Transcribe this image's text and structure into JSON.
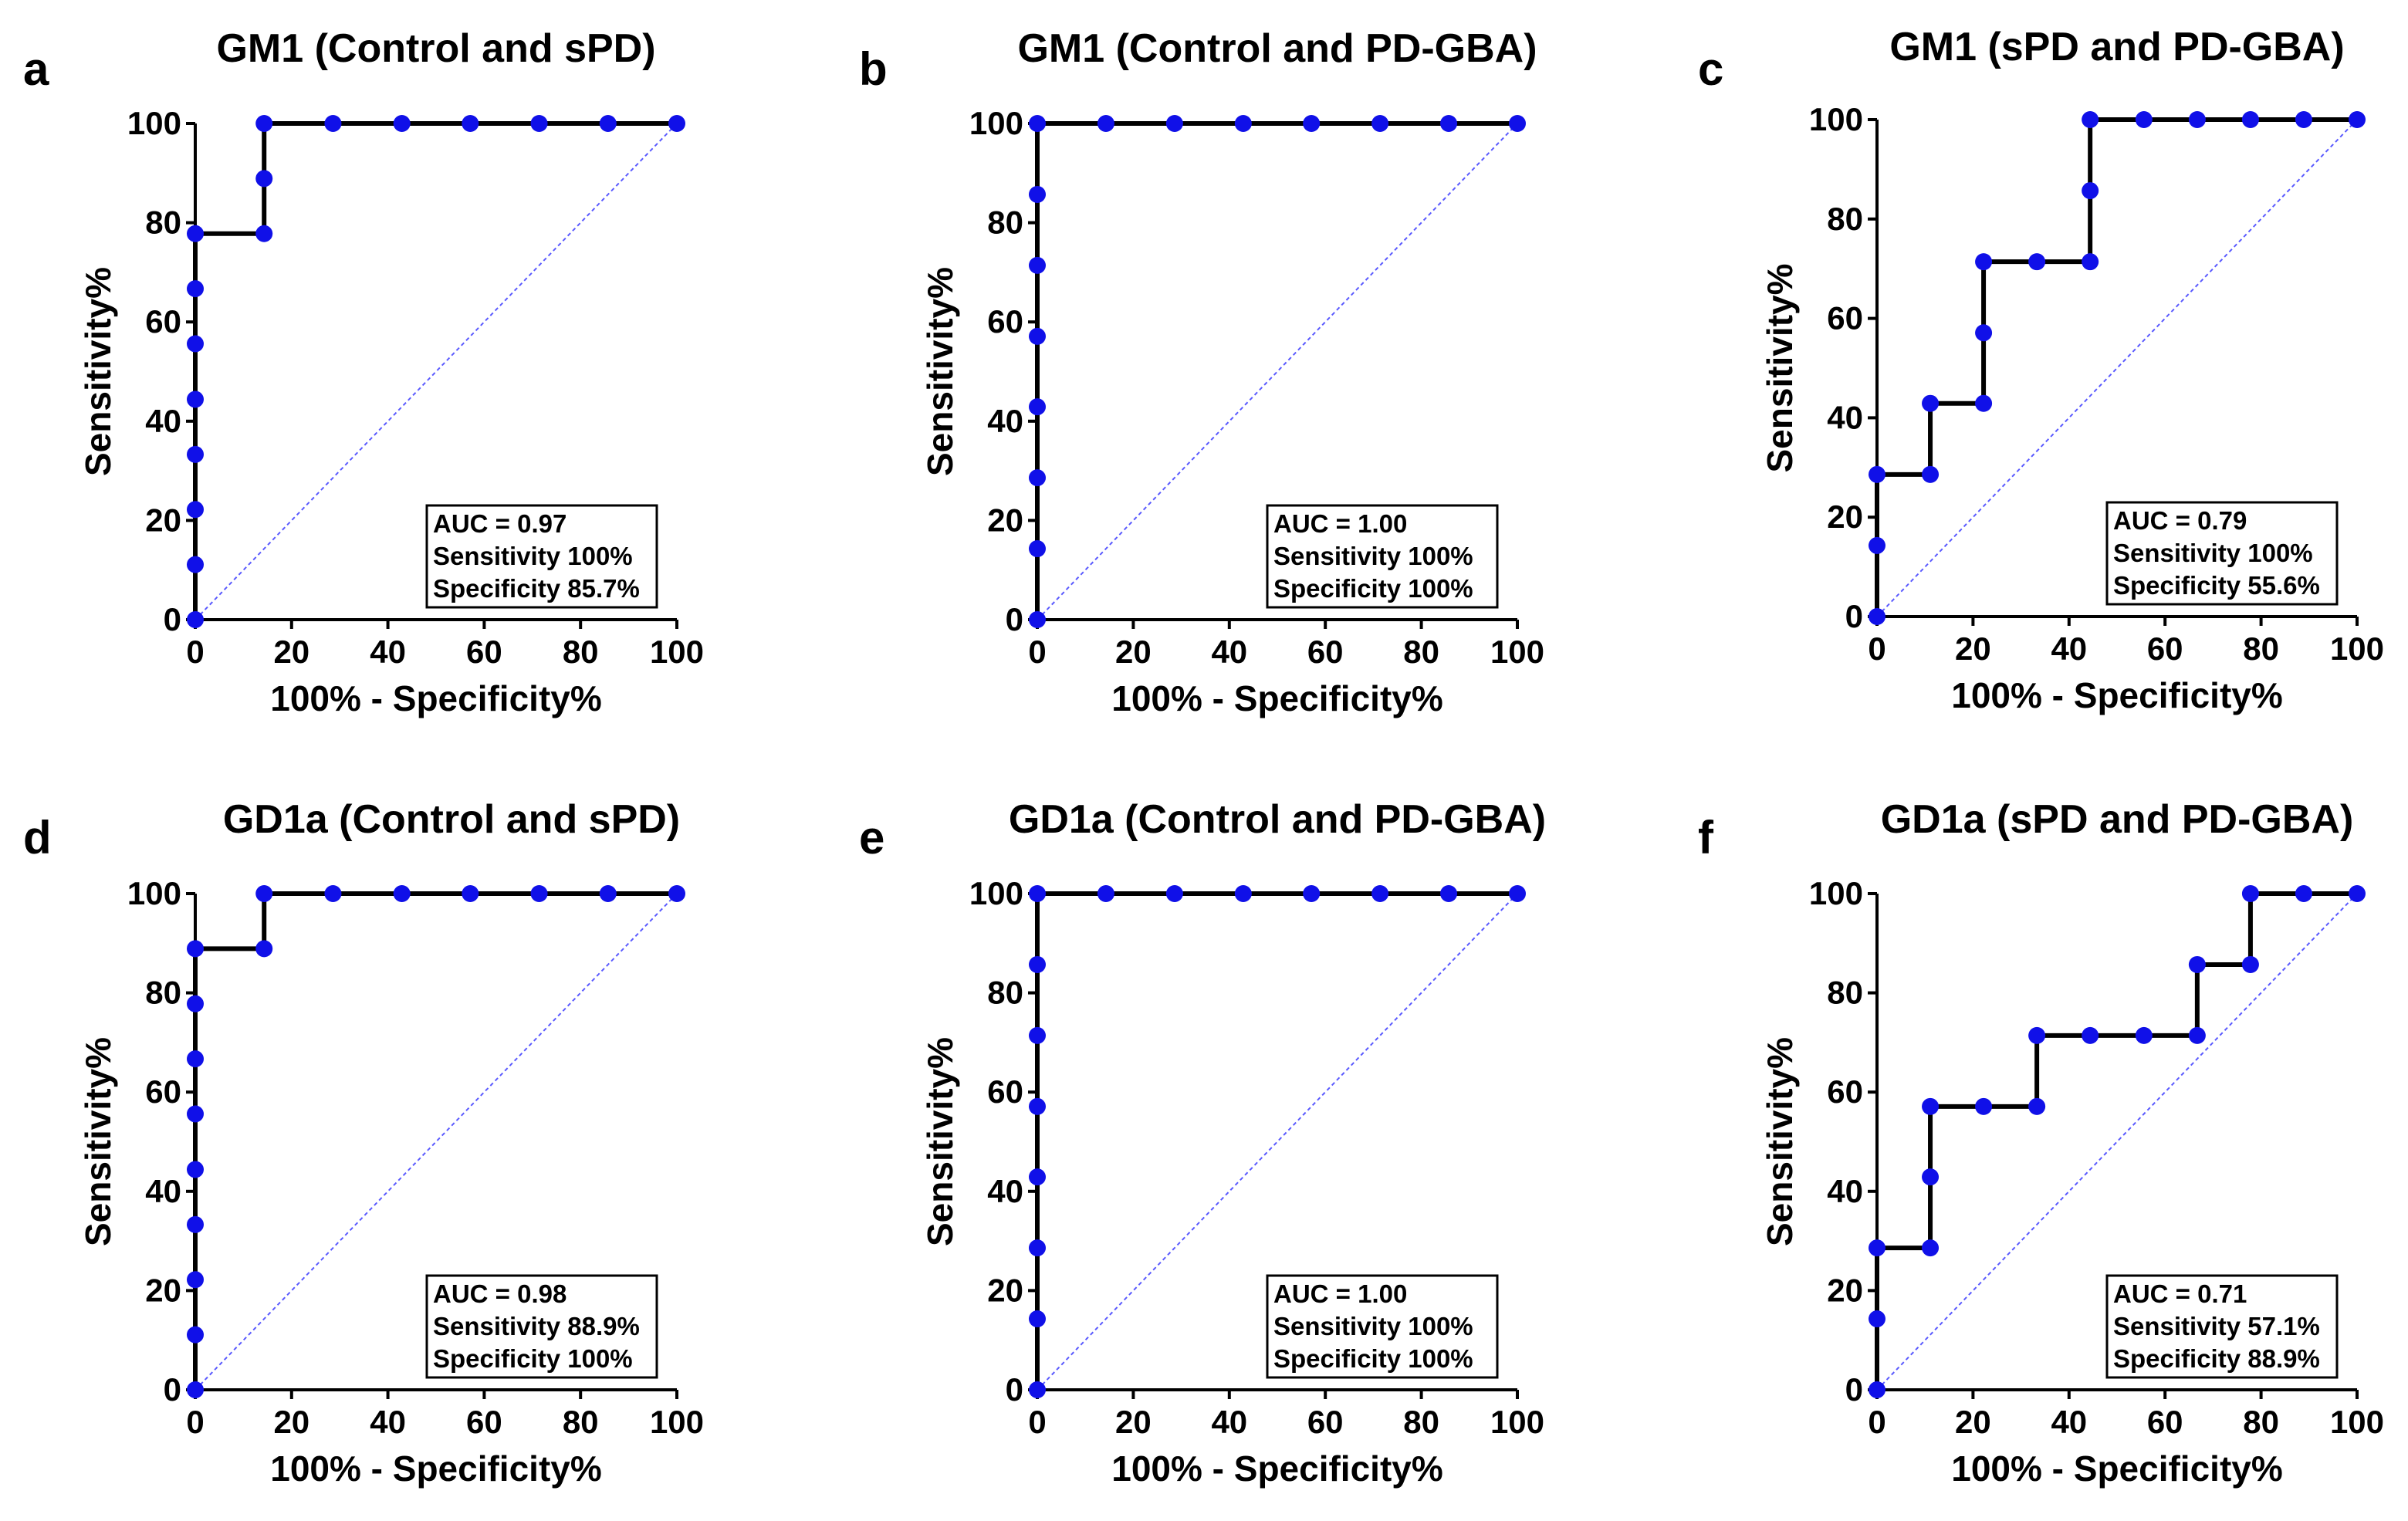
{
  "chart_data": [
    {
      "type": "line",
      "panel": "a",
      "title": "GM1 (Control and sPD)",
      "xlabel": "100% - Specificity%",
      "ylabel": "Sensitivity%",
      "xlim": [
        0,
        100
      ],
      "ylim": [
        0,
        100
      ],
      "xticks": [
        "0",
        "20",
        "40",
        "60",
        "80",
        "100"
      ],
      "yticks": [
        "0",
        "20",
        "40",
        "60",
        "80",
        "100"
      ],
      "legend": [
        "AUC = 0.97",
        "Sensitivity 100%",
        "Specificity 85.7%"
      ],
      "series": [
        {
          "name": "ROC curve",
          "x": [
            0,
            0,
            0,
            0,
            0,
            0,
            0,
            0,
            14.3,
            14.3,
            14.3,
            28.6,
            42.9,
            57.1,
            71.4,
            85.7,
            100
          ],
          "y": [
            0,
            11.1,
            22.2,
            33.3,
            44.4,
            55.6,
            66.7,
            77.8,
            77.8,
            88.9,
            100,
            100,
            100,
            100,
            100,
            100,
            100
          ]
        },
        {
          "name": "Reference line",
          "x": [
            0,
            100
          ],
          "y": [
            0,
            100
          ]
        }
      ]
    },
    {
      "type": "line",
      "panel": "b",
      "title": "GM1 (Control and PD-GBA)",
      "xlabel": "100% - Specificity%",
      "ylabel": "Sensitivity%",
      "xlim": [
        0,
        100
      ],
      "ylim": [
        0,
        100
      ],
      "xticks": [
        "0",
        "20",
        "40",
        "60",
        "80",
        "100"
      ],
      "yticks": [
        "0",
        "20",
        "40",
        "60",
        "80",
        "100"
      ],
      "legend": [
        "AUC = 1.00",
        "Sensitivity 100%",
        "Specificity 100%"
      ],
      "series": [
        {
          "name": "ROC curve",
          "x": [
            0,
            0,
            0,
            0,
            0,
            0,
            0,
            0,
            14.3,
            28.6,
            42.9,
            57.1,
            71.4,
            85.7,
            100
          ],
          "y": [
            0,
            14.3,
            28.6,
            42.9,
            57.1,
            71.4,
            85.7,
            100,
            100,
            100,
            100,
            100,
            100,
            100,
            100
          ]
        },
        {
          "name": "Reference line",
          "x": [
            0,
            100
          ],
          "y": [
            0,
            100
          ]
        }
      ]
    },
    {
      "type": "line",
      "panel": "c",
      "title": "GM1 (sPD and PD-GBA)",
      "xlabel": "100% - Specificity%",
      "ylabel": "Sensitivity%",
      "xlim": [
        0,
        100
      ],
      "ylim": [
        0,
        100
      ],
      "xticks": [
        "0",
        "20",
        "40",
        "60",
        "80",
        "100"
      ],
      "yticks": [
        "0",
        "20",
        "40",
        "60",
        "80",
        "100"
      ],
      "legend": [
        "AUC = 0.79",
        "Sensitivity 100%",
        "Specificity 55.6%"
      ],
      "series": [
        {
          "name": "ROC curve",
          "x": [
            0,
            0,
            0,
            11.1,
            11.1,
            22.2,
            22.2,
            22.2,
            33.3,
            44.4,
            44.4,
            44.4,
            55.6,
            66.7,
            77.8,
            88.9,
            100
          ],
          "y": [
            0,
            14.3,
            28.6,
            28.6,
            42.9,
            42.9,
            57.1,
            71.4,
            71.4,
            71.4,
            85.7,
            100,
            100,
            100,
            100,
            100,
            100
          ]
        },
        {
          "name": "Reference line",
          "x": [
            0,
            100
          ],
          "y": [
            0,
            100
          ]
        }
      ]
    },
    {
      "type": "line",
      "panel": "d",
      "title": "GD1a (Control and sPD)",
      "xlabel": "100% - Specificity%",
      "ylabel": "Sensitivity%",
      "xlim": [
        0,
        100
      ],
      "ylim": [
        0,
        100
      ],
      "xticks": [
        "0",
        "20",
        "40",
        "60",
        "80",
        "100"
      ],
      "yticks": [
        "0",
        "20",
        "40",
        "60",
        "80",
        "100"
      ],
      "legend": [
        "AUC = 0.98",
        "Sensitivity 88.9%",
        "Specificity 100%"
      ],
      "series": [
        {
          "name": "ROC curve",
          "x": [
            0,
            0,
            0,
            0,
            0,
            0,
            0,
            0,
            0,
            14.3,
            14.3,
            28.6,
            42.9,
            57.1,
            71.4,
            85.7,
            100
          ],
          "y": [
            0,
            11.1,
            22.2,
            33.3,
            44.4,
            55.6,
            66.7,
            77.8,
            88.9,
            88.9,
            100,
            100,
            100,
            100,
            100,
            100,
            100
          ]
        },
        {
          "name": "Reference line",
          "x": [
            0,
            100
          ],
          "y": [
            0,
            100
          ]
        }
      ]
    },
    {
      "type": "line",
      "panel": "e",
      "title": "GD1a (Control and PD-GBA)",
      "xlabel": "100% - Specificity%",
      "ylabel": "Sensitivity%",
      "xlim": [
        0,
        100
      ],
      "ylim": [
        0,
        100
      ],
      "xticks": [
        "0",
        "20",
        "40",
        "60",
        "80",
        "100"
      ],
      "yticks": [
        "0",
        "20",
        "40",
        "60",
        "80",
        "100"
      ],
      "legend": [
        "AUC = 1.00",
        "Sensitivity 100%",
        "Specificity 100%"
      ],
      "series": [
        {
          "name": "ROC curve",
          "x": [
            0,
            0,
            0,
            0,
            0,
            0,
            0,
            0,
            14.3,
            28.6,
            42.9,
            57.1,
            71.4,
            85.7,
            100
          ],
          "y": [
            0,
            14.3,
            28.6,
            42.9,
            57.1,
            71.4,
            85.7,
            100,
            100,
            100,
            100,
            100,
            100,
            100,
            100
          ]
        },
        {
          "name": "Reference line",
          "x": [
            0,
            100
          ],
          "y": [
            0,
            100
          ]
        }
      ]
    },
    {
      "type": "line",
      "panel": "f",
      "title": "GD1a (sPD and PD-GBA)",
      "xlabel": "100% - Specificity%",
      "ylabel": "Sensitivity%",
      "xlim": [
        0,
        100
      ],
      "ylim": [
        0,
        100
      ],
      "xticks": [
        "0",
        "20",
        "40",
        "60",
        "80",
        "100"
      ],
      "yticks": [
        "0",
        "20",
        "40",
        "60",
        "80",
        "100"
      ],
      "legend": [
        "AUC = 0.71",
        "Sensitivity 57.1%",
        "Specificity 88.9%"
      ],
      "series": [
        {
          "name": "ROC curve",
          "x": [
            0,
            0,
            0,
            11.1,
            11.1,
            11.1,
            22.2,
            33.3,
            33.3,
            44.4,
            55.6,
            66.7,
            66.7,
            77.8,
            77.8,
            88.9,
            100
          ],
          "y": [
            0,
            14.3,
            28.6,
            28.6,
            42.9,
            57.1,
            57.1,
            57.1,
            71.4,
            71.4,
            71.4,
            71.4,
            85.7,
            85.7,
            100,
            100,
            100
          ]
        },
        {
          "name": "Reference line",
          "x": [
            0,
            100
          ],
          "y": [
            0,
            100
          ]
        }
      ]
    }
  ],
  "colors": {
    "curve": "#000000",
    "marker": "#1010e8",
    "reference": "#5a5aff",
    "axis": "#000000"
  }
}
